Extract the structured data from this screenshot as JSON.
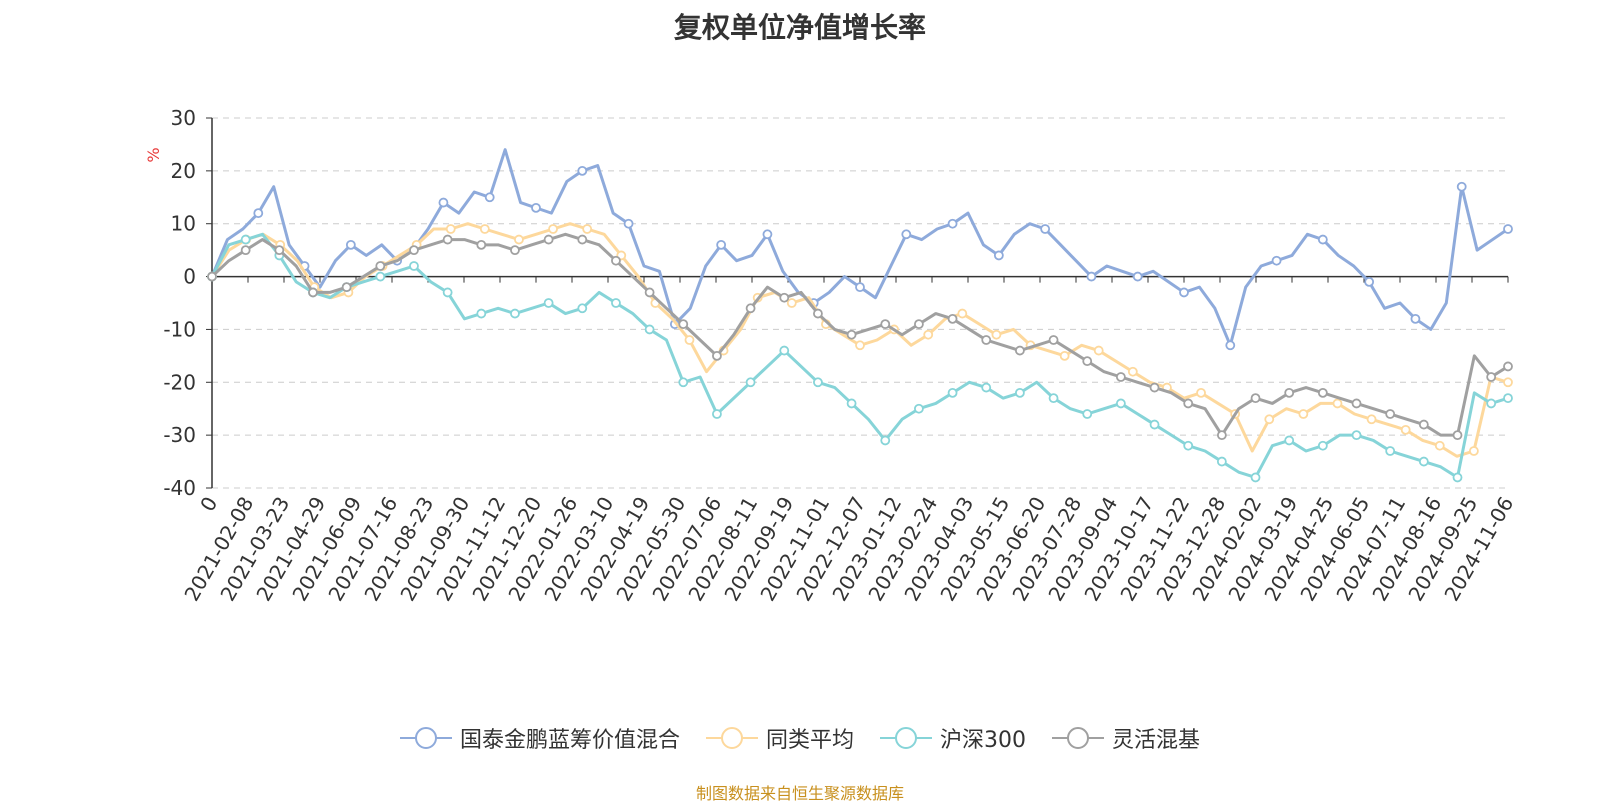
{
  "colors": {
    "s0": "#8eaadb",
    "s1": "#fdd89c",
    "s2": "#86d4d8",
    "s3": "#a0a0a0",
    "footer": "#c8901e",
    "yunit": "#e83a3a"
  },
  "footer": "制图数据来自恒生聚源数据库",
  "chart_data": {
    "type": "line",
    "title": "复权单位净值增长率",
    "yunit": "%",
    "ylim": [
      -40,
      30
    ],
    "yticks": [
      -40,
      -30,
      -20,
      -10,
      0,
      10,
      20,
      30
    ],
    "grid": true,
    "legend_position": "bottom",
    "x_tick_labels": [
      "0",
      "2021-02-08",
      "2021-03-23",
      "2021-04-29",
      "2021-06-09",
      "2021-07-16",
      "2021-08-23",
      "2021-09-30",
      "2021-11-12",
      "2021-12-20",
      "2022-01-26",
      "2022-03-10",
      "2022-04-19",
      "2022-05-30",
      "2022-07-06",
      "2022-08-11",
      "2022-09-19",
      "2022-11-01",
      "2022-12-07",
      "2023-01-12",
      "2023-02-24",
      "2023-04-03",
      "2023-05-15",
      "2023-06-20",
      "2023-07-28",
      "2023-09-04",
      "2023-10-17",
      "2023-11-22",
      "2023-12-28",
      "2024-02-02",
      "2024-03-19",
      "2024-04-25",
      "2024-06-05",
      "2024-07-11",
      "2024-08-16",
      "2024-09-25",
      "2024-11-06"
    ],
    "series": [
      {
        "name": "国泰金鹏蓝筹价值混合",
        "values": [
          0,
          7,
          9,
          12,
          17,
          6,
          2,
          -2,
          3,
          6,
          4,
          6,
          3,
          5,
          9,
          14,
          12,
          16,
          15,
          24,
          14,
          13,
          12,
          18,
          20,
          21,
          12,
          10,
          2,
          1,
          -9,
          -6,
          2,
          6,
          3,
          4,
          8,
          1,
          -3,
          -5,
          -3,
          0,
          -2,
          -4,
          2,
          8,
          7,
          9,
          10,
          12,
          6,
          4,
          8,
          10,
          9,
          6,
          3,
          0,
          2,
          1,
          0,
          1,
          -1,
          -3,
          -2,
          -6,
          -13,
          -2,
          2,
          3,
          4,
          8,
          7,
          4,
          2,
          -1,
          -6,
          -5,
          -8,
          -10,
          -5,
          17,
          5,
          7,
          9
        ]
      },
      {
        "name": "同类平均",
        "values": [
          0,
          5,
          7,
          8,
          6,
          3,
          -2,
          -4,
          -3,
          0,
          2,
          4,
          6,
          9,
          9,
          10,
          9,
          8,
          7,
          8,
          9,
          10,
          9,
          8,
          4,
          0,
          -5,
          -8,
          -12,
          -18,
          -14,
          -10,
          -4,
          -3,
          -5,
          -4,
          -9,
          -11,
          -13,
          -12,
          -10,
          -13,
          -11,
          -8,
          -7,
          -9,
          -11,
          -10,
          -13,
          -14,
          -15,
          -13,
          -14,
          -16,
          -18,
          -20,
          -21,
          -23,
          -22,
          -24,
          -26,
          -33,
          -27,
          -25,
          -26,
          -24,
          -24,
          -26,
          -27,
          -28,
          -29,
          -31,
          -32,
          -34,
          -33,
          -19,
          -20
        ]
      },
      {
        "name": "沪深300",
        "values": [
          0,
          6,
          7,
          8,
          4,
          -1,
          -3,
          -4,
          -2,
          -1,
          0,
          1,
          2,
          -1,
          -3,
          -8,
          -7,
          -6,
          -7,
          -6,
          -5,
          -7,
          -6,
          -3,
          -5,
          -7,
          -10,
          -12,
          -20,
          -19,
          -26,
          -23,
          -20,
          -17,
          -14,
          -17,
          -20,
          -21,
          -24,
          -27,
          -31,
          -27,
          -25,
          -24,
          -22,
          -20,
          -21,
          -23,
          -22,
          -20,
          -23,
          -25,
          -26,
          -25,
          -24,
          -26,
          -28,
          -30,
          -32,
          -33,
          -35,
          -37,
          -38,
          -32,
          -31,
          -33,
          -32,
          -30,
          -30,
          -31,
          -33,
          -34,
          -35,
          -36,
          -38,
          -22,
          -24,
          -23
        ]
      },
      {
        "name": "灵活混基",
        "values": [
          0,
          3,
          5,
          7,
          5,
          2,
          -3,
          -3,
          -2,
          0,
          2,
          3,
          5,
          6,
          7,
          7,
          6,
          6,
          5,
          6,
          7,
          8,
          7,
          6,
          3,
          0,
          -3,
          -6,
          -9,
          -12,
          -15,
          -11,
          -6,
          -2,
          -4,
          -3,
          -7,
          -10,
          -11,
          -10,
          -9,
          -11,
          -9,
          -7,
          -8,
          -10,
          -12,
          -13,
          -14,
          -13,
          -12,
          -14,
          -16,
          -18,
          -19,
          -20,
          -21,
          -22,
          -24,
          -25,
          -30,
          -25,
          -23,
          -24,
          -22,
          -21,
          -22,
          -23,
          -24,
          -25,
          -26,
          -27,
          -28,
          -30,
          -30,
          -15,
          -19,
          -17
        ]
      }
    ]
  }
}
